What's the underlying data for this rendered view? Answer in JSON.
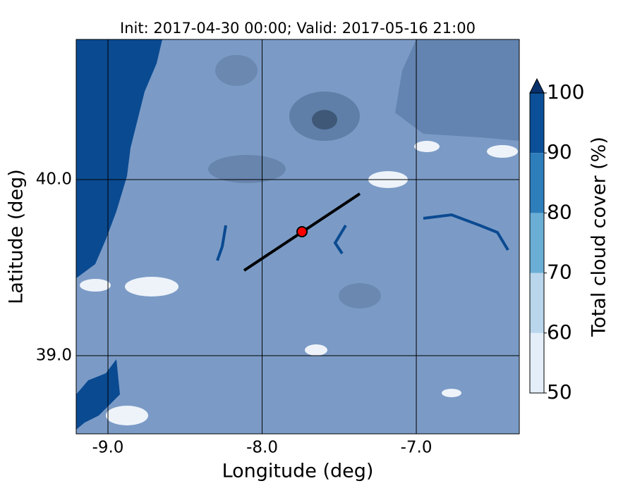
{
  "chart_data": {
    "type": "map",
    "title": "Init: 2017-04-30 00:00; Valid: 2017-05-16 21:00",
    "xlabel": "Longitude (deg)",
    "ylabel": "Latitude (deg)",
    "xlim": [
      -9.206,
      -6.332
    ],
    "ylim": [
      38.556,
      40.796
    ],
    "xticks": [
      {
        "value": -9,
        "label": "-9.0"
      },
      {
        "value": -8,
        "label": "-8.0"
      },
      {
        "value": -7,
        "label": "-7.0"
      }
    ],
    "yticks": [
      {
        "value": 39,
        "label": "39.0"
      },
      {
        "value": 40,
        "label": "40.0"
      }
    ],
    "grid": true,
    "colorbar": {
      "label": "Total cloud cover (%)",
      "lim": [
        50,
        100
      ],
      "ticks": [
        50,
        60,
        70,
        80,
        90,
        100
      ],
      "colors": [
        "#e3eef9",
        "#b9d6ec",
        "#6aaed6",
        "#2f7ebc",
        "#0a4f97"
      ],
      "extend_color": "#08306b"
    }
  }
}
